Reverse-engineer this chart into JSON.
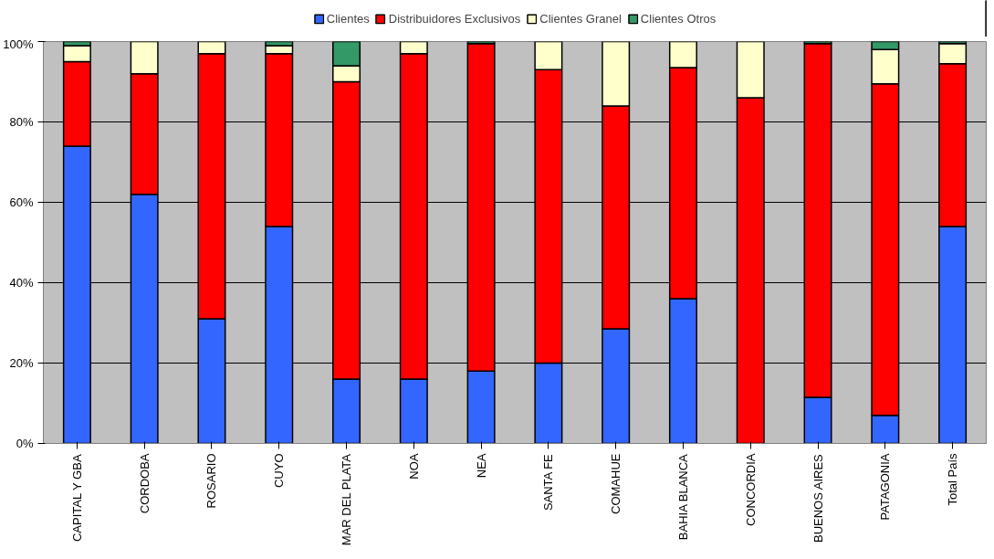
{
  "chart_data": {
    "type": "bar",
    "stacked": true,
    "categories": [
      "CAPITAL Y GBA",
      "CORDOBA",
      "ROSARIO",
      "CUYO",
      "MAR DEL PLATA",
      "NOA",
      "NEA",
      "SANTA FE",
      "COMAHUE",
      "BAHIA BLANCA",
      "CONCORDIA",
      "BUENOS AIRES",
      "PATAGONIA",
      "Total País"
    ],
    "series": [
      {
        "name": "Clientes",
        "color": "#3366ff",
        "values": [
          74,
          62,
          31,
          54,
          16,
          16,
          18,
          20,
          28.5,
          36,
          0,
          11.5,
          7,
          54
        ]
      },
      {
        "name": "Distribuidores Exclusivos",
        "color": "#ff0000",
        "values": [
          21,
          30,
          66,
          43,
          74,
          81,
          81.5,
          73,
          55.5,
          57.5,
          86,
          88,
          82.5,
          40.5
        ]
      },
      {
        "name": "Clientes Granel",
        "color": "#ffffcc",
        "values": [
          4,
          8,
          3,
          2,
          4,
          3,
          0,
          7,
          16,
          6.5,
          14,
          0,
          8.5,
          5
        ]
      },
      {
        "name": "Clientes Otros",
        "color": "#339966",
        "values": [
          1,
          0,
          0,
          1,
          6,
          0,
          0.5,
          0,
          0,
          0,
          0,
          0.5,
          2,
          0.5
        ]
      }
    ],
    "ylim": [
      0,
      100
    ],
    "yticks": [
      {
        "value": 0,
        "label": "0%"
      },
      {
        "value": 20,
        "label": "20%"
      },
      {
        "value": 40,
        "label": "40%"
      },
      {
        "value": 60,
        "label": "60%"
      },
      {
        "value": 80,
        "label": "80%"
      },
      {
        "value": 100,
        "label": "100%"
      }
    ],
    "grid": "y",
    "legend": "top"
  }
}
